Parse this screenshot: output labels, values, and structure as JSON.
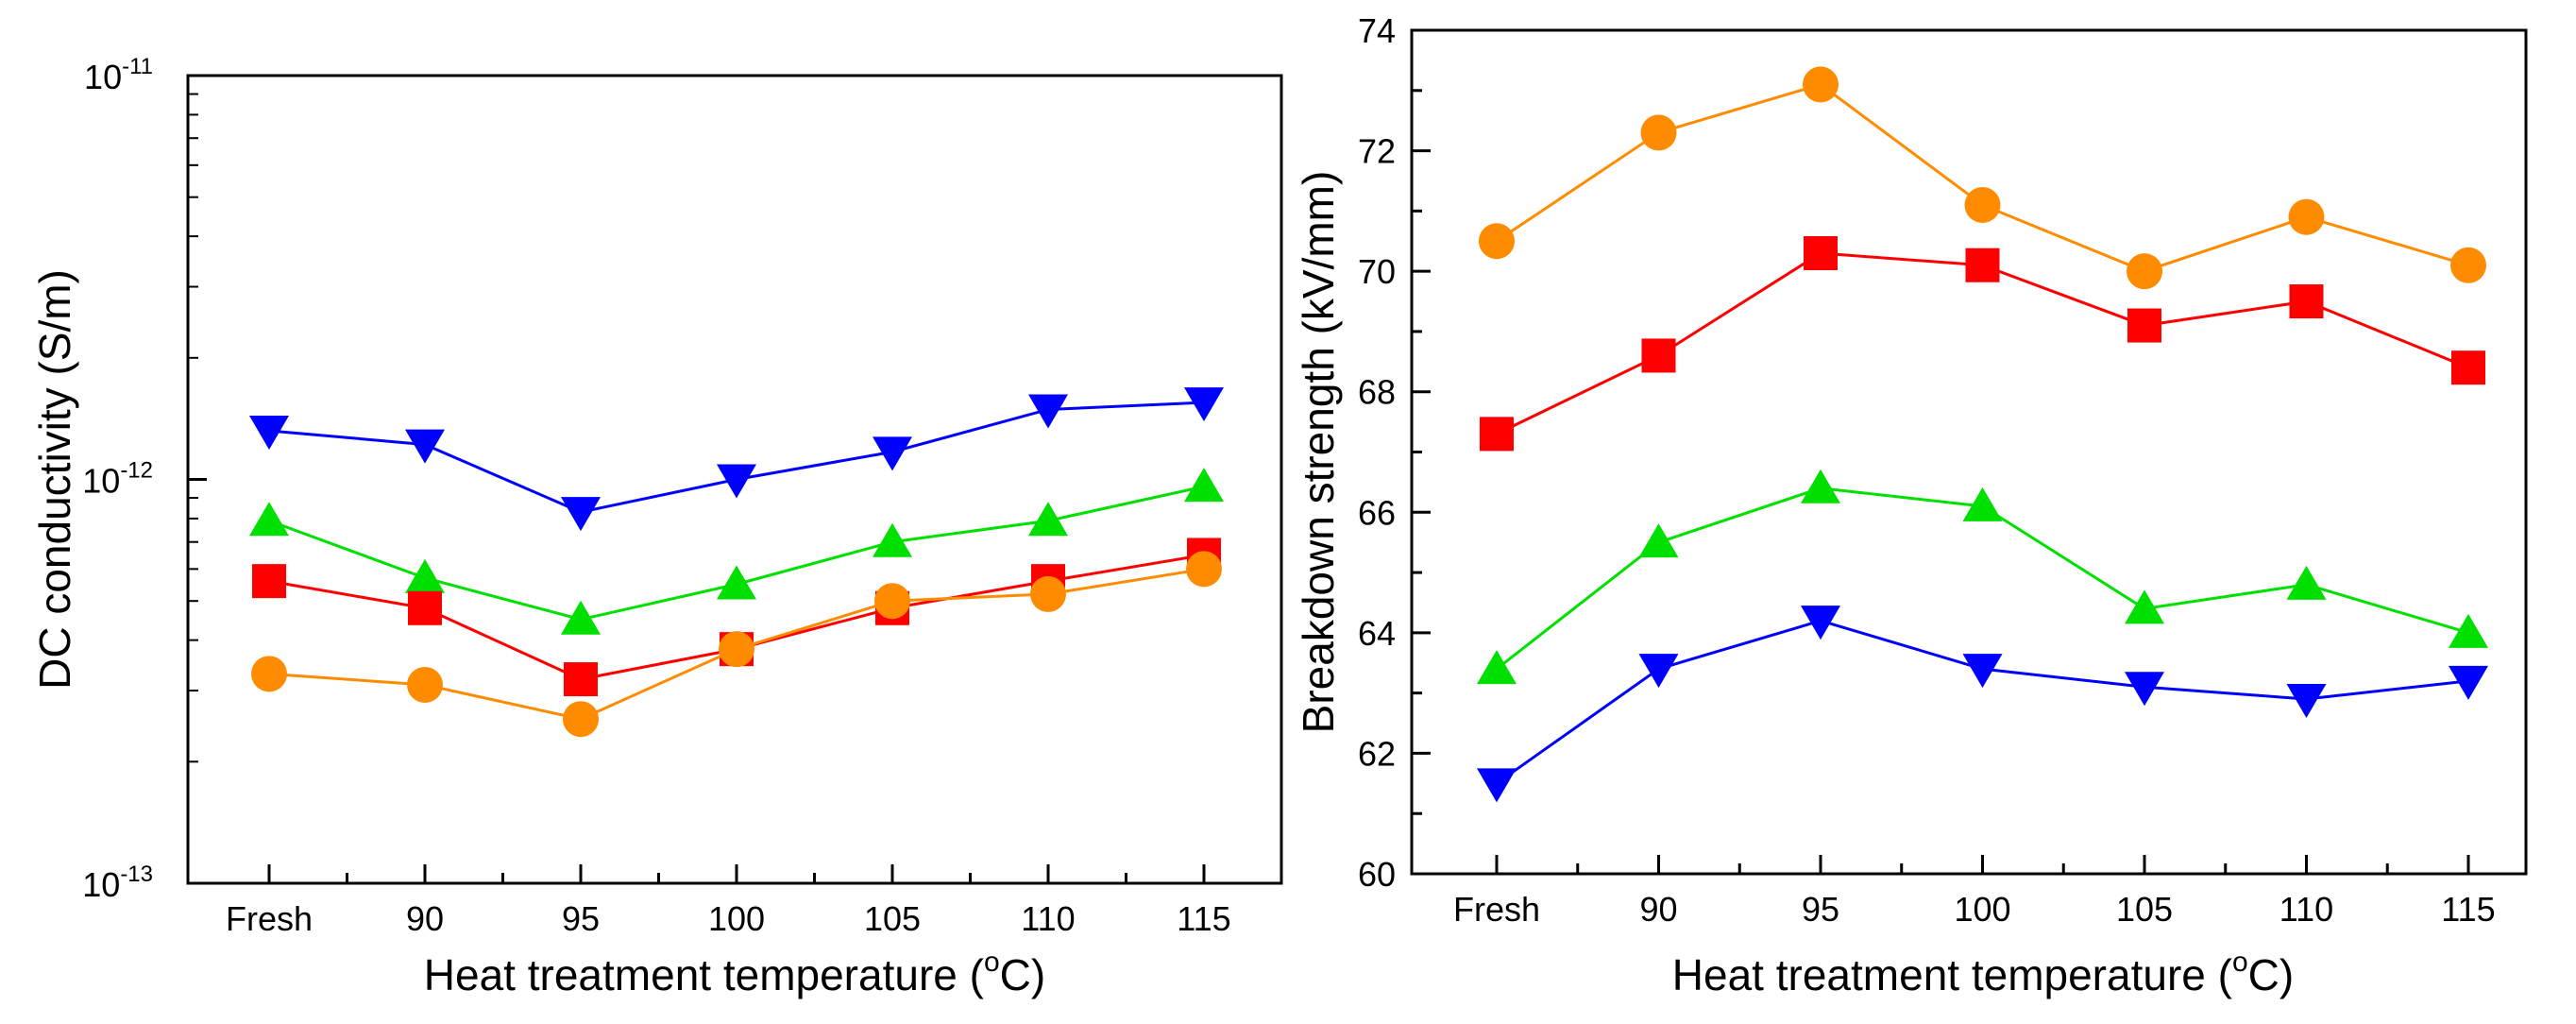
{
  "chart_data": [
    {
      "type": "line",
      "yscale": "log",
      "categories": [
        "Fresh",
        "90",
        "95",
        "100",
        "105",
        "110",
        "115"
      ],
      "ylabel": "DC conductivity (S/m)",
      "xlabel": "Heat treatment temperature (",
      "xlabel_unit": "o",
      "xlabel_unit_tail": "C)",
      "ylim": [
        1e-13,
        1e-11
      ],
      "y_ticks": [
        {
          "mantissa": "10",
          "exp": "-13"
        },
        {
          "mantissa": "10",
          "exp": "-12"
        },
        {
          "mantissa": "10",
          "exp": "-11"
        }
      ],
      "series": [
        {
          "name": "blue-down-triangle",
          "color": "#0000ff",
          "marker": "triangle-down",
          "values": [
            1.32e-12,
            1.22e-12,
            8.3e-13,
            1e-12,
            1.17e-12,
            1.49e-12,
            1.55e-12
          ]
        },
        {
          "name": "green-triangle",
          "color": "#00e000",
          "marker": "triangle-up",
          "values": [
            7.9e-13,
            5.7e-13,
            4.5e-13,
            5.5e-13,
            7e-13,
            7.9e-13,
            9.6e-13
          ]
        },
        {
          "name": "red-square",
          "color": "#ff0000",
          "marker": "square",
          "values": [
            5.6e-13,
            4.8e-13,
            3.2e-13,
            3.8e-13,
            4.8e-13,
            5.6e-13,
            6.5e-13
          ]
        },
        {
          "name": "orange-circle",
          "color": "#ff8c00",
          "marker": "circle",
          "values": [
            3.3e-13,
            3.1e-13,
            2.55e-13,
            3.8e-13,
            5e-13,
            5.2e-13,
            6e-13
          ]
        }
      ]
    },
    {
      "type": "line",
      "categories": [
        "Fresh",
        "90",
        "95",
        "100",
        "105",
        "110",
        "115"
      ],
      "ylabel": "Breakdown strength (kV/mm)",
      "xlabel": "Heat treatment temperature (",
      "xlabel_unit": "o",
      "xlabel_unit_tail": "C)",
      "ylim": [
        60,
        74
      ],
      "y_ticks": [
        "60",
        "62",
        "64",
        "66",
        "68",
        "70",
        "72",
        "74"
      ],
      "series": [
        {
          "name": "orange-circle",
          "color": "#ff8c00",
          "marker": "circle",
          "values": [
            70.5,
            72.3,
            73.1,
            71.1,
            70.0,
            70.9,
            70.1
          ]
        },
        {
          "name": "red-square",
          "color": "#ff0000",
          "marker": "square",
          "values": [
            67.3,
            68.6,
            70.3,
            70.1,
            69.1,
            69.5,
            68.4
          ]
        },
        {
          "name": "green-triangle",
          "color": "#00e000",
          "marker": "triangle-up",
          "values": [
            63.4,
            65.5,
            66.4,
            66.1,
            64.4,
            64.8,
            64.0
          ]
        },
        {
          "name": "blue-down-triangle",
          "color": "#0000ff",
          "marker": "triangle-down",
          "values": [
            61.5,
            63.4,
            64.2,
            63.4,
            63.1,
            62.9,
            63.2
          ]
        }
      ]
    }
  ]
}
